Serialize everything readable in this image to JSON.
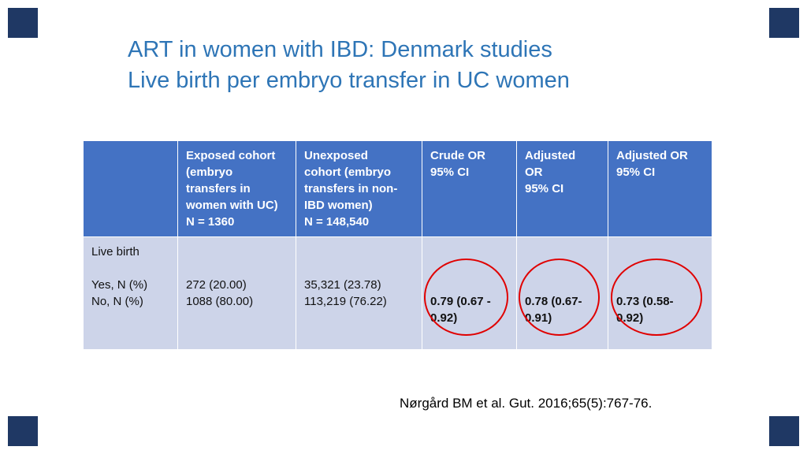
{
  "title": {
    "line1": "ART in women with IBD: Denmark studies",
    "line2": "Live birth per embryo transfer in UC women"
  },
  "table": {
    "headers": [
      "",
      "Exposed cohort\n(embryo\ntransfers in\nwomen with UC)\nN = 1360",
      "Unexposed\ncohort (embryo\ntransfers in non-\nIBD women)\nN = 148,540",
      "Crude OR\n95% CI",
      "Adjusted\nOR\n95% CI",
      "Adjusted OR\n95% CI"
    ],
    "body": {
      "row_labels": "Live birth\n\nYes, N (%)\nNo, N (%)",
      "exposed_values": "272 (20.00)\n1088 (80.00)",
      "unexposed_values": "35,321 (23.78)\n113,219 (76.22)",
      "crude_or": "0.79 (0.67 -\n0.92)",
      "adjusted_or_1": "0.78 (0.67-\n0.91)",
      "adjusted_or_2": "0.73 (0.58-\n0.92)"
    }
  },
  "citation": "Nørgård BM et al. Gut. 2016;65(5):767-76.",
  "colors": {
    "header_bg": "#4472C4",
    "body_bg": "#CDD4E9",
    "title_text": "#2E75B6",
    "corner_square": "#1F3864",
    "circle": "#E00000"
  }
}
